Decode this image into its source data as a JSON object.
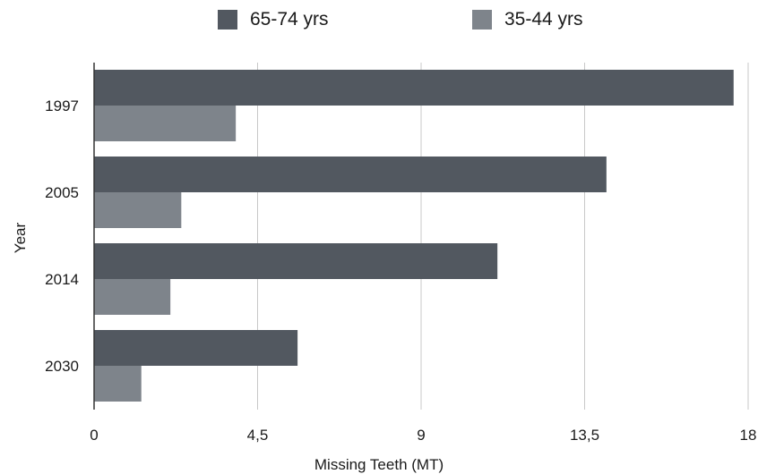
{
  "chart_data": {
    "type": "bar",
    "orientation": "horizontal",
    "categories": [
      "1997",
      "2005",
      "2014",
      "2030"
    ],
    "series": [
      {
        "name": "65-74 yrs",
        "color": "#525860",
        "values": [
          17.6,
          14.1,
          11.1,
          5.6
        ]
      },
      {
        "name": "35-44 yrs",
        "color": "#7e848b",
        "values": [
          3.9,
          2.4,
          2.1,
          1.3
        ]
      }
    ],
    "xlabel": "Missing Teeth (MT)",
    "ylabel": "Year",
    "xlim": [
      0,
      18
    ],
    "xticks": [
      {
        "value": 0,
        "label": "0"
      },
      {
        "value": 4.5,
        "label": "4,5"
      },
      {
        "value": 9,
        "label": "9"
      },
      {
        "value": 13.5,
        "label": "13,5"
      },
      {
        "value": 18,
        "label": "18"
      }
    ],
    "grid": "vertical",
    "legend_position": "top-center"
  }
}
